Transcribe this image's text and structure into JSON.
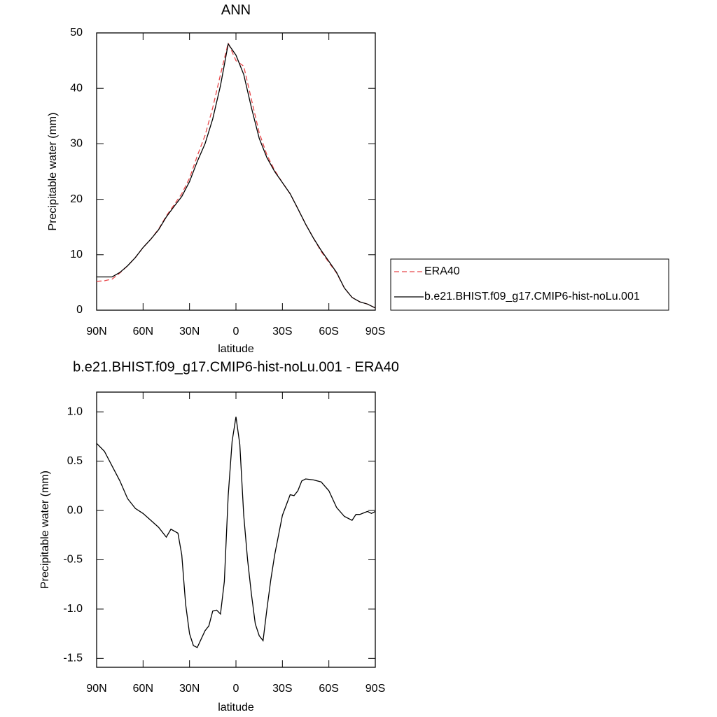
{
  "chart_data": [
    {
      "type": "line",
      "title": "ANN",
      "xlabel": "latitude",
      "ylabel": "Precipitable water (mm)",
      "x": [
        90,
        85,
        80,
        75,
        70,
        65,
        60,
        55,
        50,
        45,
        40,
        35,
        30,
        25,
        20,
        15,
        10,
        5,
        0,
        -5,
        -10,
        -15,
        -20,
        -25,
        -30,
        -35,
        -40,
        -45,
        -50,
        -55,
        -60,
        -65,
        -70,
        -75,
        -80,
        -85,
        -90
      ],
      "series": [
        {
          "name": "ERA40",
          "color": "#e8474a",
          "line_style": "dashed",
          "values": [
            5.2,
            5.3,
            5.6,
            6.7,
            8.0,
            9.5,
            11.3,
            12.8,
            14.6,
            17.0,
            19.0,
            21.0,
            23.8,
            27.8,
            31.5,
            36.5,
            42.5,
            48.2,
            45.0,
            44.0,
            38.0,
            32.0,
            28.0,
            25.2,
            23.0,
            21.0,
            18.3,
            15.5,
            13.0,
            10.6,
            8.6,
            6.7,
            4.0,
            2.3,
            1.5,
            1.1,
            0.4
          ]
        },
        {
          "name": "b.e21.BHIST.f09_g17.CMIP6-hist-noLu.001",
          "color": "#000000",
          "line_style": "solid",
          "values": [
            6.0,
            6.0,
            6.0,
            6.8,
            8.0,
            9.5,
            11.3,
            12.8,
            14.5,
            16.8,
            18.7,
            20.5,
            23.2,
            26.8,
            30.0,
            34.5,
            40.5,
            48.0,
            46.0,
            42.5,
            36.5,
            31.0,
            27.5,
            25.0,
            23.0,
            21.0,
            18.3,
            15.5,
            13.0,
            10.8,
            8.8,
            6.8,
            4.0,
            2.3,
            1.5,
            1.1,
            0.4
          ]
        }
      ],
      "xlim": [
        90,
        -90
      ],
      "xticks": [
        {
          "value": 90,
          "label": "90N"
        },
        {
          "value": 60,
          "label": "60N"
        },
        {
          "value": 30,
          "label": "30N"
        },
        0,
        {
          "value": -30,
          "label": "30S"
        },
        {
          "value": -60,
          "label": "60S"
        },
        {
          "value": -90,
          "label": "90S"
        }
      ],
      "ylim": [
        0,
        50
      ],
      "yticks": [
        0,
        10,
        20,
        30,
        40,
        50
      ],
      "legend": "outside right"
    },
    {
      "type": "line",
      "title": "b.e21.BHIST.f09_g17.CMIP6-hist-noLu.001 - ERA40",
      "xlabel": "latitude",
      "ylabel": "Precipitable water (mm)",
      "x": [
        90,
        85,
        80,
        75,
        70,
        65,
        60,
        55,
        50,
        45,
        42,
        37.5,
        35,
        32.5,
        30,
        27.5,
        25,
        20,
        17.5,
        15,
        12.5,
        10,
        7.5,
        5,
        2.5,
        0,
        -2.5,
        -5,
        -7.5,
        -10,
        -12.5,
        -15,
        -17.5,
        -20,
        -22.5,
        -25,
        -30,
        -35,
        -37.5,
        -40,
        -42.5,
        -45,
        -50,
        -55,
        -60,
        -65,
        -70,
        -75,
        -77.5,
        -80,
        -85,
        -87.5,
        -90
      ],
      "values": [
        0.68,
        0.6,
        0.45,
        0.3,
        0.12,
        0.02,
        -0.03,
        -0.1,
        -0.17,
        -0.27,
        -0.19,
        -0.23,
        -0.45,
        -0.95,
        -1.25,
        -1.37,
        -1.39,
        -1.22,
        -1.17,
        -1.02,
        -1.01,
        -1.05,
        -0.72,
        0.15,
        0.7,
        0.95,
        0.67,
        -0.05,
        -0.5,
        -0.85,
        -1.15,
        -1.27,
        -1.32,
        -1.0,
        -0.7,
        -0.45,
        -0.05,
        0.16,
        0.15,
        0.2,
        0.3,
        0.32,
        0.31,
        0.29,
        0.2,
        0.03,
        -0.06,
        -0.1,
        -0.04,
        -0.04,
        -0.01,
        -0.03,
        -0.01
      ],
      "color": "#000000",
      "xlim": [
        90,
        -90
      ],
      "xticks": [
        {
          "value": 90,
          "label": "90N"
        },
        {
          "value": 60,
          "label": "60N"
        },
        {
          "value": 30,
          "label": "30N"
        },
        0,
        {
          "value": -30,
          "label": "30S"
        },
        {
          "value": -60,
          "label": "60S"
        },
        {
          "value": -90,
          "label": "90S"
        }
      ],
      "ylim": [
        -1.59,
        1.2
      ],
      "yticks": [
        {
          "value": -1.5,
          "label": "-1.5"
        },
        {
          "value": -1,
          "label": "-1.0"
        },
        -0.5,
        {
          "value": 0,
          "label": "0.0"
        },
        0.5,
        {
          "value": 1,
          "label": "1.0"
        }
      ]
    }
  ]
}
